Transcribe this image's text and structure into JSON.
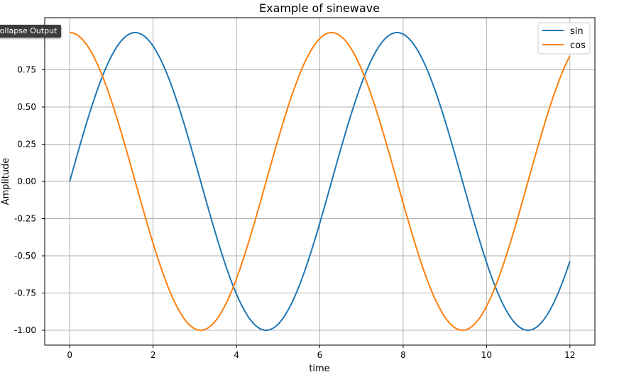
{
  "overlay": {
    "collapse_label": "Collapse Output"
  },
  "chart_data": {
    "type": "line",
    "title": "Example of sinewave",
    "xlabel": "time",
    "ylabel": "Amplitude",
    "xlim": [
      -0.6,
      12.6
    ],
    "ylim": [
      -1.1,
      1.1
    ],
    "xticks": [
      0,
      2,
      4,
      6,
      8,
      10,
      12
    ],
    "xtick_labels": [
      "0",
      "2",
      "4",
      "6",
      "8",
      "10",
      "12"
    ],
    "yticks": [
      0.75,
      0.5,
      0.25,
      0.0,
      -0.25,
      -0.5,
      -0.75,
      -1.0
    ],
    "ytick_labels": [
      "0.75",
      "0.50",
      "0.25",
      "0.00",
      "-0.25",
      "-0.50",
      "-0.75",
      "-1.00"
    ],
    "grid": true,
    "legend_position": "top-right",
    "x_range": [
      0,
      12
    ],
    "series": [
      {
        "name": "sin",
        "function": "sin",
        "color": "#1f77b4"
      },
      {
        "name": "cos",
        "function": "cos",
        "color": "#ff7f0e"
      }
    ]
  }
}
